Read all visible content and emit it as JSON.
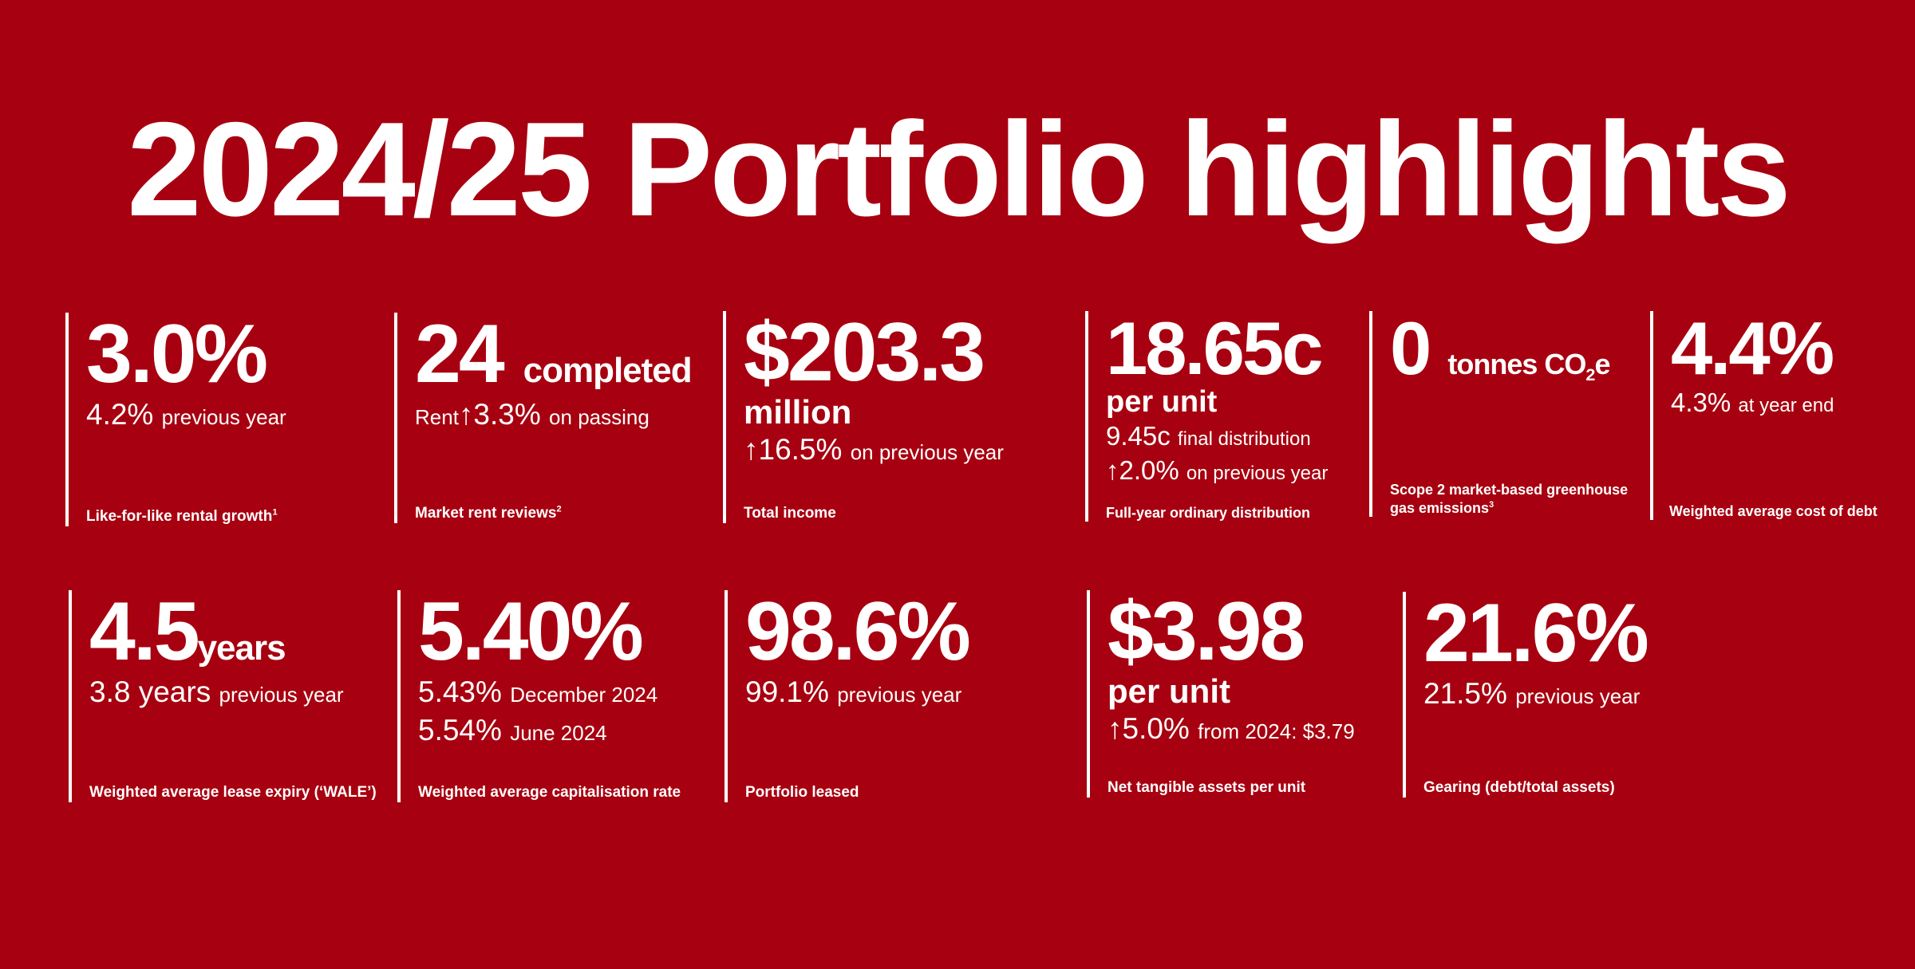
{
  "page": {
    "title": "2024/25 Portfolio highlights",
    "colors": {
      "background": "#a70010",
      "foreground": "#ffffff"
    }
  },
  "cards": {
    "c1": {
      "big": "3.0%",
      "sub_value": "4.2%",
      "sub_text": "previous year",
      "label": "Like-for-like rental growth",
      "note": "1"
    },
    "c2": {
      "big": "24",
      "unit": "completed",
      "sub_prefix": "Rent",
      "arrow": "↑",
      "sub_value": "3.3%",
      "sub_text": "on passing",
      "label": "Market rent reviews",
      "note": "2"
    },
    "c3": {
      "big": "$203.3",
      "big2": "million",
      "arrow": "↑",
      "sub_value": "16.5%",
      "sub_text": "on previous year",
      "label": "Total income"
    },
    "c4": {
      "big": "18.65c",
      "big2": "per unit",
      "line1_value": "9.45c",
      "line1_text": "final distribution",
      "arrow": "↑",
      "line2_value": "2.0%",
      "line2_text": "on previous year",
      "label": "Full-year ordinary distribution"
    },
    "c5": {
      "big": "0",
      "unit_pre": "tonnes CO",
      "unit_sub": "2",
      "unit_post": "e",
      "label_line1": "Scope 2 market-based greenhouse",
      "label_line2": "gas emissions",
      "note": "3"
    },
    "c6": {
      "big": "4.4%",
      "sub_value": "4.3%",
      "sub_text": "at year end",
      "label": "Weighted average cost of debt"
    },
    "c7": {
      "big": "4.5",
      "unit": "years",
      "sub_value": "3.8 years",
      "sub_text": "previous year",
      "label": "Weighted average lease expiry (‘WALE’)"
    },
    "c8": {
      "big": "5.40%",
      "line1_value": "5.43%",
      "line1_text": "December 2024",
      "line2_value": "5.54%",
      "line2_text": "June 2024",
      "label": "Weighted average capitalisation rate"
    },
    "c9": {
      "big": "98.6%",
      "sub_value": "99.1%",
      "sub_text": "previous year",
      "label": "Portfolio leased"
    },
    "c10": {
      "big": "$3.98",
      "big2": "per unit",
      "arrow": "↑",
      "sub_value": "5.0%",
      "sub_text": "from 2024: $3.79",
      "label": "Net tangible assets per unit"
    },
    "c11": {
      "big": "21.6%",
      "sub_value": "21.5%",
      "sub_text": "previous year",
      "label": "Gearing (debt/total assets)"
    }
  }
}
